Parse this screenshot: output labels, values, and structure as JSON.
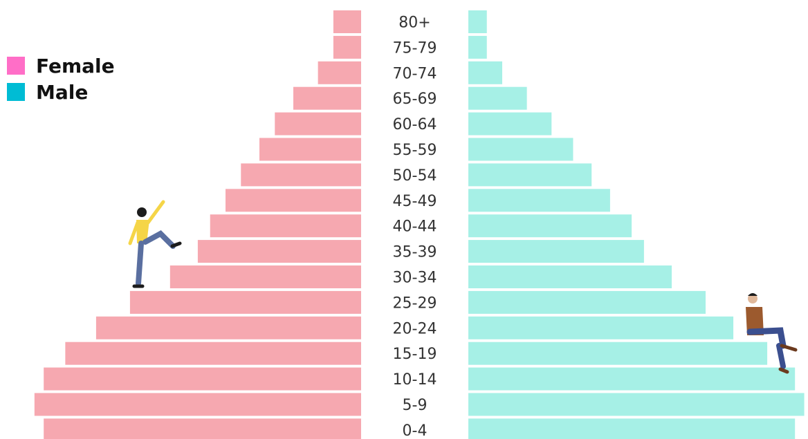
{
  "legend": {
    "female_label": "Female",
    "male_label": "Male",
    "female_swatch_color": "#ff6ec7",
    "male_swatch_color": "#00bcd4"
  },
  "chart_data": {
    "type": "bar",
    "orientation": "horizontal-population-pyramid",
    "title": "",
    "xlabel": "",
    "ylabel": "",
    "grid": false,
    "legend_position": "top-left",
    "categories": [
      "80+",
      "75-79",
      "70-74",
      "65-69",
      "60-64",
      "55-59",
      "50-54",
      "45-49",
      "40-44",
      "35-39",
      "30-34",
      "25-29",
      "20-24",
      "15-19",
      "10-14",
      "5-9",
      "0-4"
    ],
    "series": [
      {
        "name": "Female",
        "side": "left",
        "color": "#f6a8b0",
        "values": [
          0.9,
          0.9,
          1.4,
          2.2,
          2.8,
          3.3,
          3.9,
          4.4,
          4.9,
          5.3,
          6.2,
          7.5,
          8.6,
          9.6,
          10.3,
          10.6,
          10.3
        ]
      },
      {
        "name": "Male",
        "side": "right",
        "color": "#a6f0e6",
        "values": [
          0.6,
          0.6,
          1.1,
          1.9,
          2.7,
          3.4,
          4.0,
          4.6,
          5.3,
          5.7,
          6.6,
          7.7,
          8.6,
          9.7,
          10.6,
          10.9,
          10.6
        ]
      }
    ],
    "xlim": [
      0,
      11
    ]
  },
  "illustrations": {
    "climber": "woman-climbing-stairs-illustration",
    "sitter": "man-sitting-illustration"
  }
}
